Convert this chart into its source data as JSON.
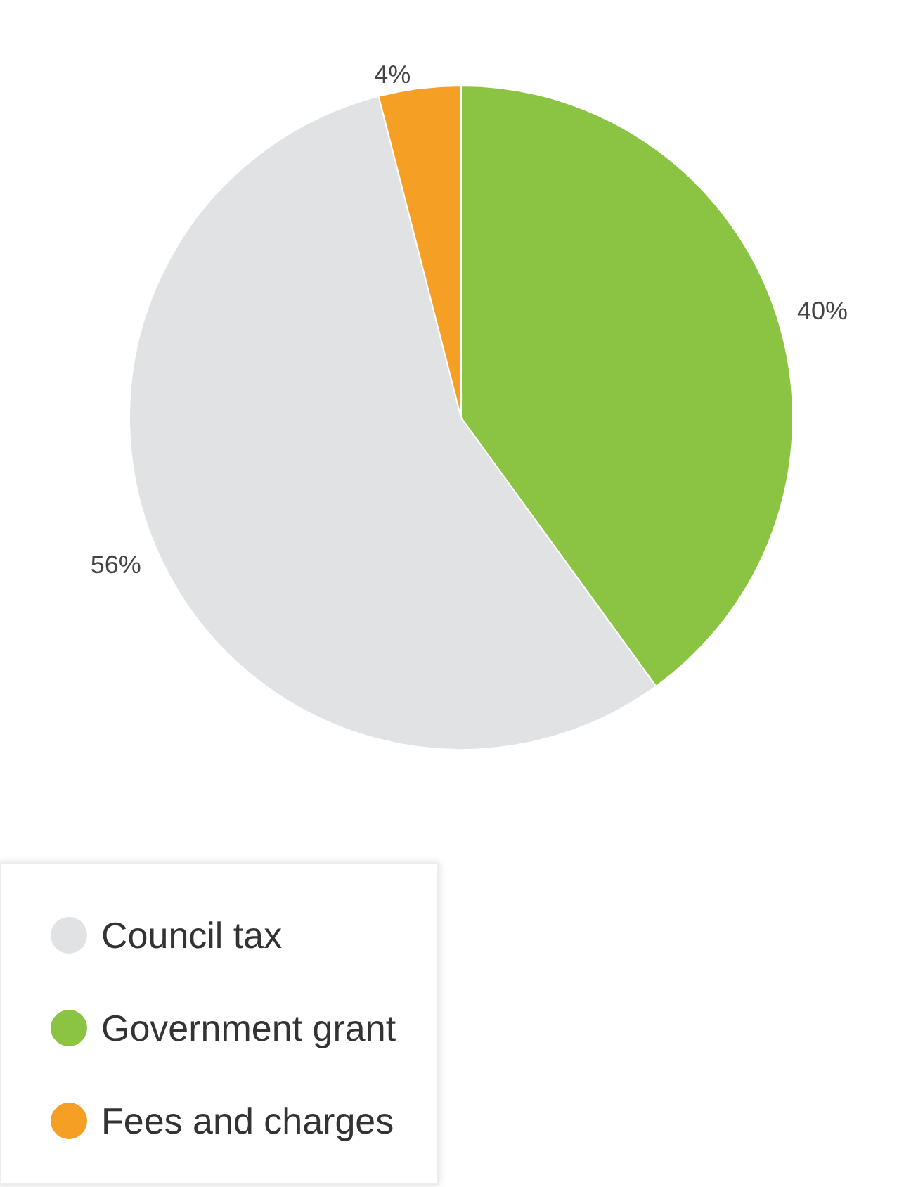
{
  "chart_data": {
    "type": "pie",
    "categories": [
      "Council tax",
      "Government grant",
      "Fees and charges"
    ],
    "values": [
      56,
      40,
      4
    ],
    "colors": [
      "#e1e2e4",
      "#8bc443",
      "#f5a025"
    ],
    "value_labels": [
      "56%",
      "40%",
      "4%"
    ],
    "legend": "bottom"
  }
}
